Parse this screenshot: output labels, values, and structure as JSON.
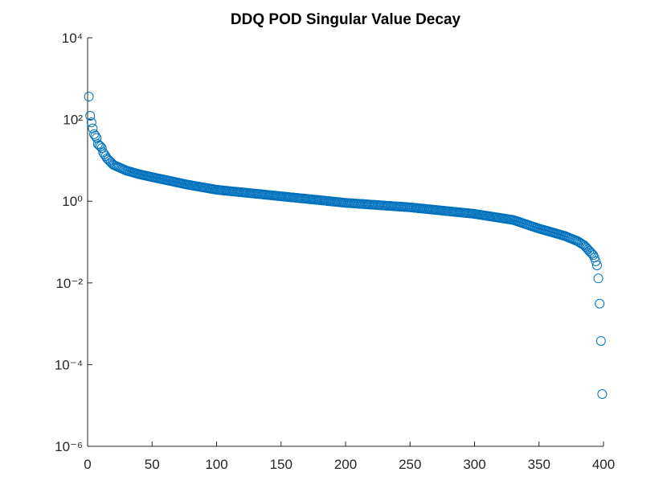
{
  "chart_data": {
    "type": "scatter",
    "title": "DDQ POD Singular Value Decay",
    "log_y": true,
    "color": "#0072bd",
    "xlim": [
      0,
      400
    ],
    "xticks": [
      0,
      50,
      100,
      150,
      200,
      250,
      300,
      350,
      400
    ],
    "ylim": [
      1e-06,
      10000
    ],
    "yticks": [
      {
        "value": 1e-06,
        "label": "10⁻⁶"
      },
      {
        "value": 0.0001,
        "label": "10⁻⁴"
      },
      {
        "value": 0.01,
        "label": "10⁻²"
      },
      {
        "value": 1,
        "label": "10⁰"
      },
      {
        "value": 100,
        "label": "10²"
      },
      {
        "value": 10000,
        "label": "10⁴"
      }
    ],
    "x": [
      1,
      2,
      3,
      4,
      5,
      6,
      7,
      8,
      9,
      10,
      11,
      12,
      13,
      14,
      15,
      16,
      17,
      18,
      19,
      20,
      21,
      22,
      23,
      24,
      25,
      26,
      27,
      28,
      29,
      30,
      31,
      32,
      33,
      34,
      35,
      36,
      37,
      38,
      39,
      40,
      41,
      42,
      43,
      44,
      45,
      46,
      47,
      48,
      49,
      50,
      51,
      52,
      53,
      54,
      55,
      56,
      57,
      58,
      59,
      60,
      61,
      62,
      63,
      64,
      65,
      66,
      67,
      68,
      69,
      70,
      71,
      72,
      73,
      74,
      75,
      76,
      77,
      78,
      79,
      80,
      81,
      82,
      83,
      84,
      85,
      86,
      87,
      88,
      89,
      90,
      91,
      92,
      93,
      94,
      95,
      96,
      97,
      98,
      99,
      100,
      101,
      102,
      103,
      104,
      105,
      106,
      107,
      108,
      109,
      110,
      111,
      112,
      113,
      114,
      115,
      116,
      117,
      118,
      119,
      120,
      121,
      122,
      123,
      124,
      125,
      126,
      127,
      128,
      129,
      130,
      131,
      132,
      133,
      134,
      135,
      136,
      137,
      138,
      139,
      140,
      141,
      142,
      143,
      144,
      145,
      146,
      147,
      148,
      149,
      150,
      151,
      152,
      153,
      154,
      155,
      156,
      157,
      158,
      159,
      160,
      161,
      162,
      163,
      164,
      165,
      166,
      167,
      168,
      169,
      170,
      171,
      172,
      173,
      174,
      175,
      176,
      177,
      178,
      179,
      180,
      181,
      182,
      183,
      184,
      185,
      186,
      187,
      188,
      189,
      190,
      191,
      192,
      193,
      194,
      195,
      196,
      197,
      198,
      199,
      200,
      201,
      202,
      203,
      204,
      205,
      206,
      207,
      208,
      209,
      210,
      211,
      212,
      213,
      214,
      215,
      216,
      217,
      218,
      219,
      220,
      221,
      222,
      223,
      224,
      225,
      226,
      227,
      228,
      229,
      230,
      231,
      232,
      233,
      234,
      235,
      236,
      237,
      238,
      239,
      240,
      241,
      242,
      243,
      244,
      245,
      246,
      247,
      248,
      249,
      250,
      251,
      252,
      253,
      254,
      255,
      256,
      257,
      258,
      259,
      260,
      261,
      262,
      263,
      264,
      265,
      266,
      267,
      268,
      269,
      270,
      271,
      272,
      273,
      274,
      275,
      276,
      277,
      278,
      279,
      280,
      281,
      282,
      283,
      284,
      285,
      286,
      287,
      288,
      289,
      290,
      291,
      292,
      293,
      294,
      295,
      296,
      297,
      298,
      299,
      300,
      301,
      302,
      303,
      304,
      305,
      306,
      307,
      308,
      309,
      310,
      311,
      312,
      313,
      314,
      315,
      316,
      317,
      318,
      319,
      320,
      321,
      322,
      323,
      324,
      325,
      326,
      327,
      328,
      329,
      330,
      331,
      332,
      333,
      334,
      335,
      336,
      337,
      338,
      339,
      340,
      341,
      342,
      343,
      344,
      345,
      346,
      347,
      348,
      349,
      350,
      351,
      352,
      353,
      354,
      355,
      356,
      357,
      358,
      359,
      360,
      361,
      362,
      363,
      364,
      365,
      366,
      367,
      368,
      369,
      370,
      371,
      372,
      373,
      374,
      375,
      376,
      377,
      378,
      379,
      380,
      381,
      382,
      383,
      384,
      385,
      386,
      387,
      388,
      389,
      390,
      391,
      392,
      393,
      394,
      395,
      396,
      397,
      398,
      399
    ],
    "values": [
      363,
      123,
      85.1,
      60.3,
      43.7,
      39.8,
      35.5,
      25.1,
      23.4,
      21.9,
      20.0,
      15.8,
      14.1,
      12.6,
      11.2,
      10.4,
      9.68,
      9.0,
      8.36,
      7.76,
      7.52,
      7.28,
      7.05,
      6.82,
      6.61,
      6.4,
      6.19,
      6.0,
      5.81,
      5.62,
      5.51,
      5.4,
      5.28,
      5.18,
      5.07,
      4.97,
      4.86,
      4.76,
      4.67,
      4.57,
      4.5,
      4.43,
      4.36,
      4.29,
      4.22,
      4.15,
      4.08,
      4.02,
      3.95,
      3.89,
      3.83,
      3.77,
      3.71,
      3.66,
      3.6,
      3.55,
      3.49,
      3.44,
      3.39,
      3.33,
      3.28,
      3.23,
      3.18,
      3.13,
      3.09,
      3.04,
      2.99,
      2.95,
      2.9,
      2.86,
      2.81,
      2.77,
      2.73,
      2.68,
      2.64,
      2.6,
      2.56,
      2.53,
      2.5,
      2.47,
      2.43,
      2.4,
      2.37,
      2.34,
      2.31,
      2.28,
      2.25,
      2.22,
      2.2,
      2.17,
      2.14,
      2.11,
      2.09,
      2.06,
      2.03,
      2.01,
      1.98,
      1.96,
      1.93,
      1.91,
      1.89,
      1.88,
      1.86,
      1.85,
      1.84,
      1.82,
      1.81,
      1.8,
      1.78,
      1.77,
      1.76,
      1.74,
      1.73,
      1.72,
      1.71,
      1.69,
      1.68,
      1.67,
      1.66,
      1.64,
      1.63,
      1.62,
      1.61,
      1.6,
      1.59,
      1.57,
      1.56,
      1.55,
      1.54,
      1.53,
      1.52,
      1.51,
      1.5,
      1.49,
      1.48,
      1.46,
      1.45,
      1.44,
      1.43,
      1.42,
      1.41,
      1.4,
      1.39,
      1.38,
      1.37,
      1.36,
      1.35,
      1.34,
      1.33,
      1.32,
      1.31,
      1.3,
      1.29,
      1.28,
      1.27,
      1.26,
      1.25,
      1.24,
      1.24,
      1.23,
      1.22,
      1.21,
      1.2,
      1.19,
      1.18,
      1.17,
      1.17,
      1.16,
      1.15,
      1.14,
      1.13,
      1.12,
      1.12,
      1.11,
      1.1,
      1.09,
      1.08,
      1.08,
      1.07,
      1.06,
      1.05,
      1.04,
      1.04,
      1.03,
      1.02,
      1.011,
      1.004,
      0.996,
      0.989,
      0.982,
      0.975,
      0.968,
      0.961,
      0.954,
      0.947,
      0.94,
      0.933,
      0.926,
      0.919,
      0.912,
      0.907,
      0.903,
      0.898,
      0.894,
      0.889,
      0.885,
      0.88,
      0.876,
      0.871,
      0.867,
      0.862,
      0.858,
      0.854,
      0.849,
      0.845,
      0.841,
      0.837,
      0.832,
      0.828,
      0.824,
      0.82,
      0.816,
      0.812,
      0.808,
      0.804,
      0.8,
      0.796,
      0.792,
      0.788,
      0.784,
      0.779,
      0.775,
      0.771,
      0.768,
      0.764,
      0.76,
      0.756,
      0.752,
      0.748,
      0.745,
      0.741,
      0.737,
      0.733,
      0.73,
      0.726,
      0.722,
      0.719,
      0.715,
      0.712,
      0.708,
      0.703,
      0.698,
      0.692,
      0.687,
      0.682,
      0.677,
      0.672,
      0.667,
      0.663,
      0.658,
      0.653,
      0.648,
      0.643,
      0.638,
      0.634,
      0.629,
      0.625,
      0.62,
      0.616,
      0.611,
      0.607,
      0.602,
      0.598,
      0.593,
      0.589,
      0.585,
      0.58,
      0.576,
      0.572,
      0.568,
      0.563,
      0.559,
      0.555,
      0.551,
      0.547,
      0.543,
      0.539,
      0.535,
      0.531,
      0.527,
      0.524,
      0.52,
      0.516,
      0.512,
      0.508,
      0.505,
      0.501,
      0.497,
      0.494,
      0.49,
      0.484,
      0.479,
      0.473,
      0.468,
      0.463,
      0.457,
      0.452,
      0.447,
      0.442,
      0.437,
      0.432,
      0.427,
      0.422,
      0.417,
      0.412,
      0.407,
      0.403,
      0.398,
      0.394,
      0.389,
      0.385,
      0.38,
      0.376,
      0.372,
      0.367,
      0.363,
      0.359,
      0.355,
      0.351,
      0.347,
      0.339,
      0.331,
      0.323,
      0.315,
      0.308,
      0.3,
      0.293,
      0.286,
      0.279,
      0.273,
      0.266,
      0.259,
      0.253,
      0.247,
      0.241,
      0.235,
      0.23,
      0.224,
      0.219,
      0.214,
      0.209,
      0.205,
      0.201,
      0.197,
      0.193,
      0.189,
      0.185,
      0.181,
      0.177,
      0.174,
      0.17,
      0.167,
      0.163,
      0.16,
      0.157,
      0.153,
      0.15,
      0.147,
      0.144,
      0.141,
      0.137,
      0.133,
      0.129,
      0.125,
      0.122,
      0.118,
      0.115,
      0.111,
      0.108,
      0.105,
      0.1,
      0.0955,
      0.0912,
      0.0871,
      0.0832,
      0.0769,
      0.0711,
      0.0658,
      0.0608,
      0.0562,
      0.0525,
      0.0479,
      0.0417,
      0.0339,
      0.0269,
      0.0129,
      0.0031,
      0.00038,
      1.9e-05
    ]
  }
}
